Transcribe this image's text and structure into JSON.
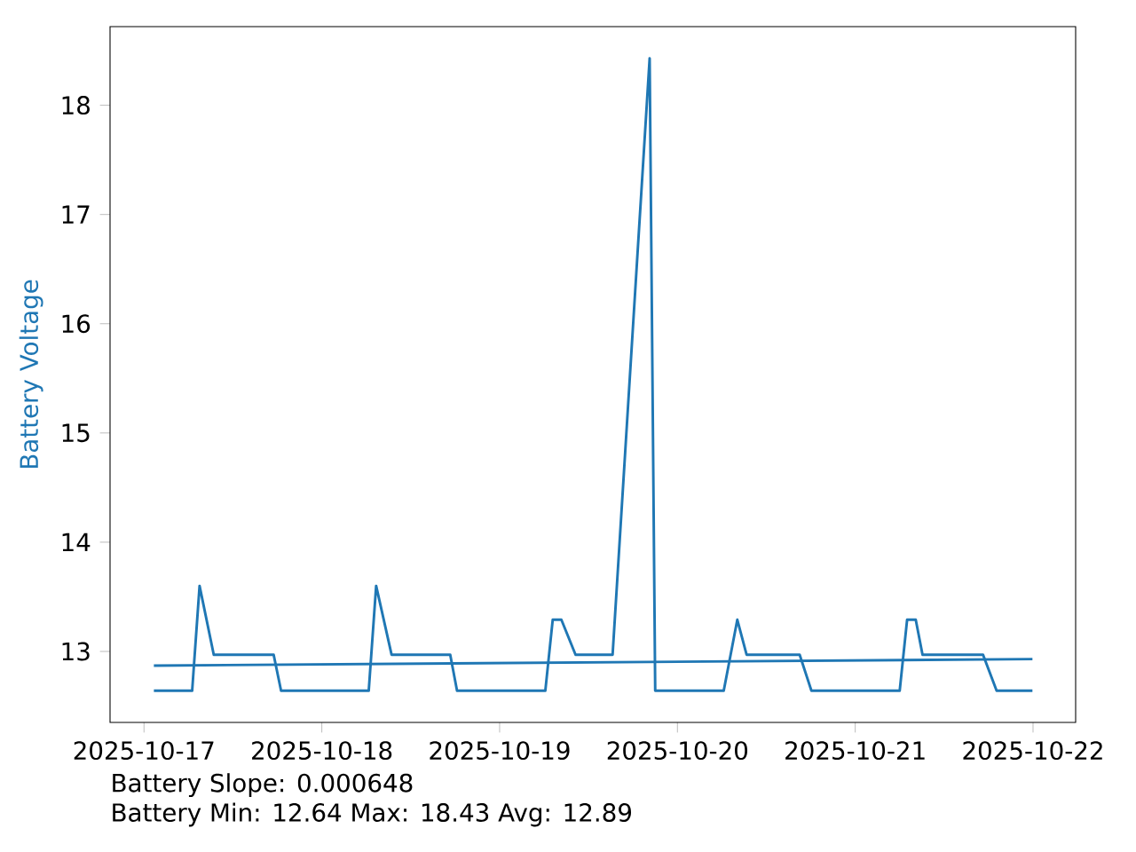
{
  "chart_data": {
    "type": "line",
    "ylabel": "Battery Voltage",
    "xlim": [
      "2025-10-16T19:25",
      "2025-10-22T05:45"
    ],
    "xticks": [
      {
        "value": "2025-10-17",
        "label": "2025-10-17"
      },
      {
        "value": "2025-10-18",
        "label": "2025-10-18"
      },
      {
        "value": "2025-10-19",
        "label": "2025-10-19"
      },
      {
        "value": "2025-10-20",
        "label": "2025-10-20"
      },
      {
        "value": "2025-10-21",
        "label": "2025-10-21"
      },
      {
        "value": "2025-10-22",
        "label": "2025-10-22"
      }
    ],
    "ylim": [
      12.35,
      18.72
    ],
    "yticks": [
      13,
      14,
      15,
      16,
      17,
      18
    ],
    "series": [
      {
        "color": "#1f77b4",
        "x": [
          "2025-10-17T01:20",
          "2025-10-17T06:30",
          "2025-10-17T07:30",
          "2025-10-17T09:25",
          "2025-10-17T17:30",
          "2025-10-17T18:30",
          "2025-10-18T06:20",
          "2025-10-18T07:20",
          "2025-10-18T09:25",
          "2025-10-18T17:20",
          "2025-10-18T18:15",
          "2025-10-19T06:10",
          "2025-10-19T07:10",
          "2025-10-19T08:20",
          "2025-10-19T10:15",
          "2025-10-19T15:15",
          "2025-10-19T20:15",
          "2025-10-19T21:00",
          "2025-10-20T06:15",
          "2025-10-20T08:05",
          "2025-10-20T09:20",
          "2025-10-20T16:30",
          "2025-10-20T18:05",
          "2025-10-21T06:00",
          "2025-10-21T07:00",
          "2025-10-21T08:10",
          "2025-10-21T09:05",
          "2025-10-21T17:15",
          "2025-10-21T19:05",
          "2025-10-21T23:55"
        ],
        "values": [
          12.64,
          12.64,
          13.6,
          12.97,
          12.97,
          12.64,
          12.64,
          13.6,
          12.97,
          12.97,
          12.64,
          12.64,
          13.29,
          13.29,
          12.97,
          12.97,
          18.43,
          12.64,
          12.64,
          13.29,
          12.97,
          12.97,
          12.64,
          12.64,
          13.29,
          13.29,
          12.97,
          12.97,
          12.64,
          12.64
        ]
      },
      {
        "color": "#1f77b4",
        "x": [
          "2025-10-17T01:20",
          "2025-10-21T23:55"
        ],
        "values": [
          12.87,
          12.93
        ]
      }
    ],
    "annotations": [
      "Battery Slope: 0.000648",
      "Battery Min: 12.64 Max: 18.43 Avg: 12.89"
    ]
  }
}
